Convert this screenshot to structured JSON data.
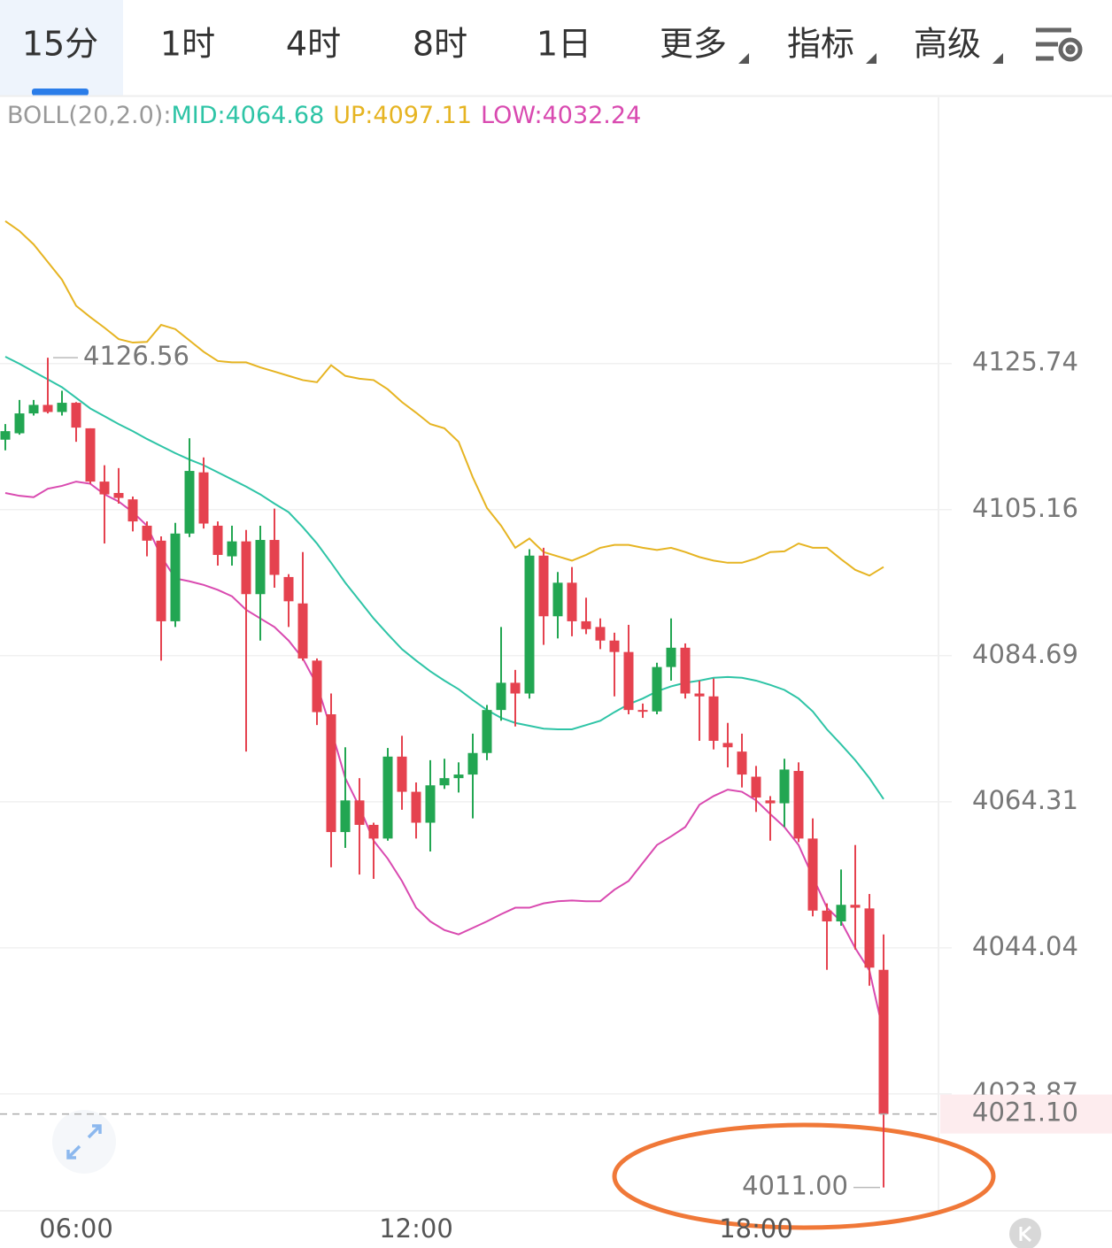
{
  "tabs": [
    "15分",
    "1时",
    "4时",
    "8时",
    "1日",
    "更多",
    "指标",
    "高级"
  ],
  "active_tab": 0,
  "chart_data": {
    "type": "candlestick",
    "indicator": "BOLL(20,2.0):",
    "categories": [
      null,
      null,
      null,
      null,
      null,
      "06:00",
      null,
      null,
      null,
      null,
      null,
      null,
      null,
      null,
      null,
      null,
      null,
      null,
      null,
      null,
      null,
      null,
      null,
      null,
      null,
      null,
      null,
      null,
      null,
      "12:00",
      null,
      null,
      null,
      null,
      null,
      null,
      null,
      null,
      null,
      null,
      null,
      null,
      null,
      null,
      null,
      null,
      null,
      null,
      null,
      null,
      null,
      null,
      null,
      "18:00",
      null,
      null,
      null,
      null,
      null,
      null,
      null,
      null,
      null
    ],
    "open": [
      4115.0,
      4115.9,
      4118.7,
      4119.9,
      4118.9,
      4120.2,
      4116.6,
      4109.1,
      4107.5,
      4106.6,
      4102.9,
      4100.8,
      4089.5,
      4101.8,
      4110.4,
      4102.9,
      4098.6,
      4100.7,
      4093.3,
      4100.9,
      4095.7,
      4092.0,
      4084.0,
      4076.5,
      4060.1,
      4064.5,
      4061.1,
      4059.2,
      4070.6,
      4065.7,
      4061.4,
      4066.6,
      4067.6,
      4068.1,
      4071.1,
      4077.1,
      4080.9,
      4079.4,
      4098.7,
      4090.2,
      4094.9,
      4089.5,
      4088.7,
      4086.8,
      4085.2,
      4077.1,
      4076.9,
      4083.1,
      4085.8,
      4079.4,
      4079.0,
      4072.5,
      4071.3,
      4067.8,
      4064.5,
      4064.1,
      4068.6,
      4059.2,
      4049.2,
      4047.7,
      4050.0,
      4049.5,
      4041.0
    ],
    "high": [
      4117.2,
      4120.6,
      4120.6,
      4126.56,
      4121.9,
      4120.3,
      4116.6,
      4111.4,
      4111.0,
      4107.0,
      4103.5,
      4101.4,
      4103.3,
      4115.2,
      4112.5,
      4103.5,
      4102.9,
      4102.3,
      4102.9,
      4105.3,
      4096.1,
      4099.2,
      4084.3,
      4079.4,
      4071.9,
      4067.6,
      4061.4,
      4071.8,
      4073.5,
      4067.0,
      4070.1,
      4070.3,
      4069.8,
      4073.8,
      4077.8,
      4088.7,
      4082.7,
      4099.6,
      4099.8,
      4096.4,
      4097.1,
      4092.8,
      4089.9,
      4087.9,
      4089.0,
      4078.0,
      4083.7,
      4089.9,
      4086.4,
      4081.2,
      4081.5,
      4075.3,
      4073.8,
      4069.3,
      4065.1,
      4070.3,
      4069.8,
      4062.0,
      4050.2,
      4054.9,
      4058.3,
      4051.5,
      4045.9
    ],
    "low": [
      4113.5,
      4115.7,
      4118.4,
      4118.7,
      4118.4,
      4114.7,
      4108.8,
      4100.4,
      4106.0,
      4102.1,
      4098.6,
      4084.0,
      4088.7,
      4101.3,
      4102.5,
      4097.3,
      4097.3,
      4071.3,
      4086.8,
      4094.2,
      4088.7,
      4084.0,
      4075.0,
      4055.2,
      4057.9,
      4054.2,
      4053.6,
      4058.9,
      4063.2,
      4059.2,
      4057.4,
      4066.1,
      4065.6,
      4062.0,
      4070.1,
      4075.6,
      4074.8,
      4078.7,
      4086.2,
      4087.1,
      4087.4,
      4087.7,
      4085.6,
      4079.0,
      4076.5,
      4076.0,
      4076.5,
      4081.2,
      4078.7,
      4072.8,
      4071.6,
      4069.1,
      4066.3,
      4062.9,
      4058.9,
      4060.8,
      4058.7,
      4048.4,
      4041.0,
      4047.1,
      4043.8,
      4038.8,
      4011.0
    ],
    "close": [
      4116.2,
      4118.7,
      4119.9,
      4118.9,
      4120.2,
      4116.7,
      4109.1,
      4107.3,
      4106.8,
      4103.5,
      4100.8,
      4089.5,
      4101.8,
      4110.6,
      4103.2,
      4098.8,
      4100.7,
      4093.3,
      4100.9,
      4096.0,
      4092.3,
      4084.3,
      4076.8,
      4060.1,
      4064.5,
      4061.1,
      4059.2,
      4070.6,
      4065.7,
      4061.4,
      4066.6,
      4067.6,
      4068.1,
      4071.1,
      4077.1,
      4080.9,
      4079.4,
      4098.7,
      4090.2,
      4094.9,
      4089.5,
      4088.4,
      4086.8,
      4085.2,
      4077.1,
      4076.9,
      4083.1,
      4085.8,
      4079.4,
      4079.0,
      4072.8,
      4071.9,
      4068.1,
      4064.9,
      4064.1,
      4068.8,
      4059.2,
      4049.2,
      4047.7,
      4050.0,
      4049.6,
      4041.3,
      4021.1
    ],
    "up_color": "#22a652",
    "down_color": "#e5424f",
    "min_label": "4011.00",
    "last_price_label": "4021.10",
    "series": [
      {
        "name": "MID:",
        "color": "#2ec4a6",
        "values": [
          4126.7,
          4125.7,
          4124.6,
          4123.5,
          4122.4,
          4120.9,
          4119.4,
          4118.3,
          4117.2,
          4116.2,
          4115.1,
          4114.1,
          4113.1,
          4112.2,
          4111.4,
          4110.4,
          4109.4,
          4108.4,
          4107.3,
          4106.0,
          4104.8,
          4102.7,
          4100.4,
          4097.7,
          4094.9,
          4092.4,
          4089.9,
          4087.7,
          4085.6,
          4084.0,
          4082.5,
          4081.2,
          4080.0,
          4078.5,
          4077.1,
          4076.0,
          4075.3,
          4074.9,
          4074.5,
          4074.4,
          4074.4,
          4075.0,
          4075.6,
          4076.8,
          4077.9,
          4078.7,
          4079.7,
          4080.4,
          4080.9,
          4081.2,
          4081.6,
          4081.7,
          4081.6,
          4081.2,
          4080.6,
          4079.9,
          4078.7,
          4076.9,
          4074.4,
          4072.3,
          4070.1,
          4067.6,
          4064.68
        ]
      },
      {
        "name": "UP:",
        "color": "#e6b422",
        "values": [
          4145.9,
          4144.5,
          4142.6,
          4140.1,
          4137.6,
          4133.9,
          4132.3,
          4130.8,
          4129.2,
          4128.7,
          4128.8,
          4131.2,
          4130.6,
          4129.0,
          4127.4,
          4126.1,
          4125.9,
          4125.9,
          4125.2,
          4124.6,
          4124.0,
          4123.4,
          4123.1,
          4125.5,
          4124.0,
          4123.6,
          4123.4,
          4122.1,
          4120.3,
          4118.8,
          4117.2,
          4116.6,
          4114.7,
          4109.7,
          4105.4,
          4102.9,
          4099.8,
          4101.1,
          4099.2,
          4098.6,
          4098.0,
          4098.8,
          4099.8,
          4100.2,
          4100.2,
          4099.8,
          4099.5,
          4099.8,
          4099.2,
          4098.5,
          4098.0,
          4097.7,
          4097.7,
          4098.3,
          4099.2,
          4099.3,
          4100.4,
          4099.8,
          4099.8,
          4098.2,
          4096.7,
          4095.9,
          4097.11
        ]
      },
      {
        "name": "LOW:",
        "color": "#d94ab0",
        "values": [
          4107.5,
          4107.1,
          4106.9,
          4108.1,
          4108.5,
          4109.1,
          4108.8,
          4107.3,
          4106.3,
          4104.8,
          4102.9,
          4098.6,
          4095.5,
          4095.1,
          4094.6,
          4093.9,
          4093.0,
          4091.1,
          4089.9,
          4088.7,
          4086.8,
          4084.3,
          4080.6,
          4074.4,
          4067.6,
          4063.6,
          4058.9,
          4056.4,
          4053.3,
          4049.6,
          4047.7,
          4046.5,
          4045.9,
          4046.8,
          4047.7,
          4048.7,
          4049.6,
          4049.6,
          4050.2,
          4050.5,
          4050.6,
          4050.5,
          4050.5,
          4052.1,
          4053.3,
          4055.8,
          4058.3,
          4059.5,
          4060.8,
          4063.9,
          4065.1,
          4066.0,
          4065.7,
          4064.5,
          4062.6,
          4060.8,
          4058.3,
          4053.9,
          4049.6,
          4047.7,
          4044.0,
          4040.9,
          4032.24
        ]
      }
    ],
    "ylim": [
      4007.8,
      4163.5
    ],
    "yticks": [
      4023.87,
      4044.04,
      4064.31,
      4084.69,
      4105.16,
      4125.74
    ],
    "log_scale": true,
    "grid": true
  }
}
